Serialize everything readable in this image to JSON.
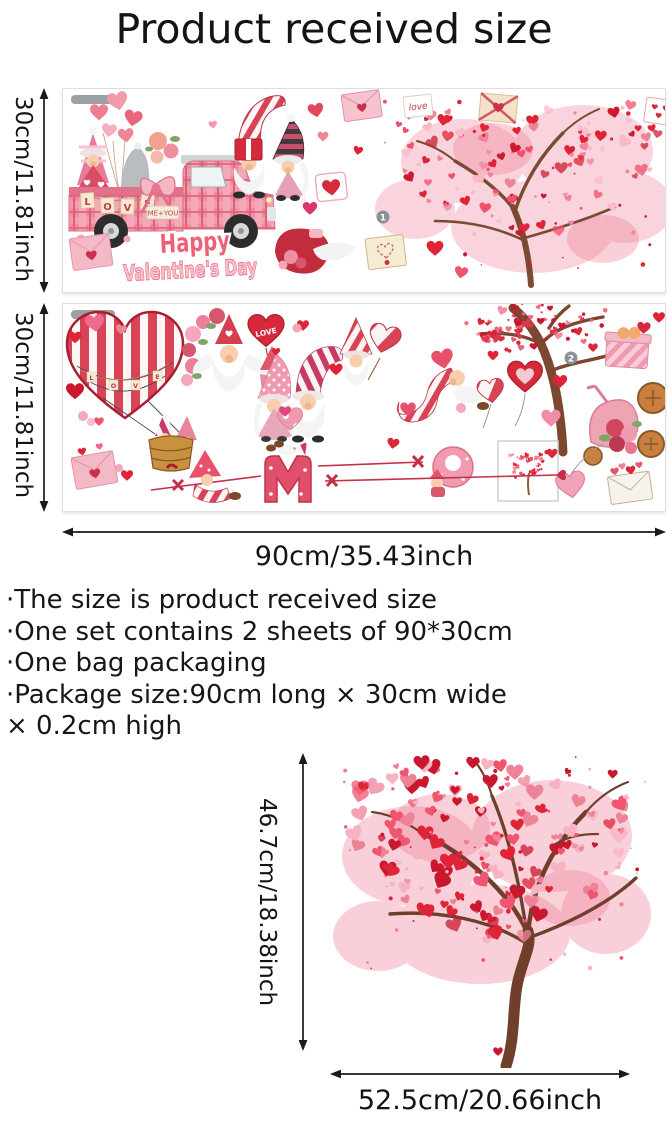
{
  "title": "Product received size",
  "dimensions": {
    "sheet_height": "30cm/11.81inch",
    "sheet_width": "90cm/35.43inch",
    "tree_height": "46.7cm/18.38inch",
    "tree_width": "52.5cm/20.66inch"
  },
  "notes": [
    "·The size is product received size",
    "·One set contains 2 sheets of 90*30cm",
    "·One bag packaging",
    "·Package size:90cm long × 30cm wide",
    "× 0.2cm high"
  ],
  "sheet1": {
    "marker": "1",
    "love_banner": [
      "L",
      "O",
      "V",
      "E"
    ],
    "me_you_tag": "ME+YOU",
    "happy": "Happy",
    "valentines_day": "Valentine's Day",
    "love_card": "love"
  },
  "sheet2": {
    "marker": "2",
    "balloon_letters": [
      "L",
      "O",
      "V",
      "E"
    ],
    "heart_balloon_text": "LOVE",
    "letter_sticker": "M"
  },
  "icons": {
    "heart": "♥",
    "envelope": "✉",
    "truck": "pink-pickup-truck",
    "gnome": "valentine-gnome",
    "hot_air_balloon": "heart-hot-air-balloon",
    "heart_tree": "heart-shaped-tree",
    "scooter": "pink-scooter",
    "gift": "gift-box",
    "cupid_arrow": "cupid-arrow",
    "marker_1": "①",
    "marker_2": "②"
  },
  "colors": {
    "red": "#d6293a",
    "deep_red": "#b02237",
    "pink": "#ef8da0",
    "light_pink": "#f6b6c3",
    "blush": "#f6aabb",
    "trunk_brown": "#7c4a33",
    "text": "#141414",
    "sheet_border": "#dedede",
    "marker_gray": "#8b9096"
  }
}
